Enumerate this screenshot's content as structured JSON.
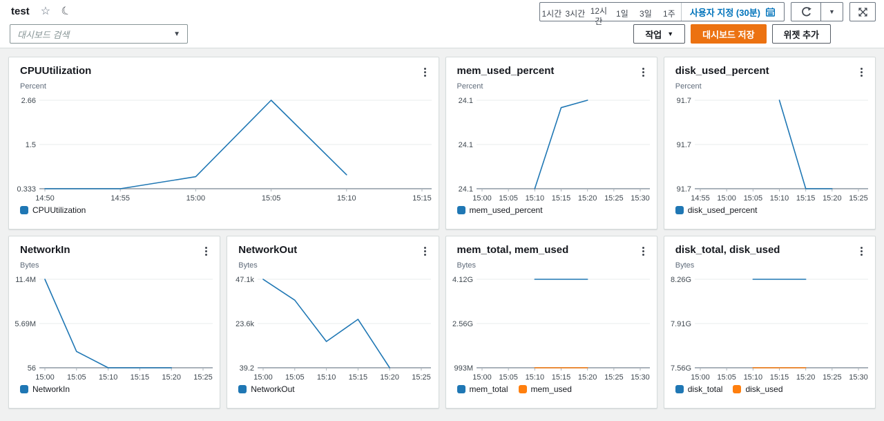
{
  "header": {
    "title": "test",
    "search_placeholder": "대시보드 검색",
    "time_ranges": [
      "1시간",
      "3시간",
      "12시간",
      "1일",
      "3일",
      "1주"
    ],
    "custom_range": "사용자 지정 (30분)",
    "actions": "작업",
    "save": "대시보드 저장",
    "add_widget": "위젯 추가"
  },
  "colors": {
    "accent_orange": "#ec7211",
    "link_blue": "#0073bb",
    "series_blue": "#1f77b4",
    "series_orange": "#ff7f0e"
  },
  "chart_data": [
    {
      "type": "line",
      "title": "CPUUtilization",
      "unit": "Percent",
      "span": 2,
      "x_ticks": [
        "14:50",
        "14:55",
        "15:00",
        "15:05",
        "15:10",
        "15:15"
      ],
      "y_ticks": [
        {
          "value": 2.66,
          "label": "2.66"
        },
        {
          "value": 1.5,
          "label": "1.5"
        },
        {
          "value": 0.333,
          "label": "0.333"
        }
      ],
      "series": [
        {
          "name": "CPUUtilization",
          "color": "#1f77b4",
          "points": [
            [
              "14:50",
              0.333
            ],
            [
              "14:55",
              0.333
            ],
            [
              "15:00",
              0.65
            ],
            [
              "15:05",
              2.66
            ],
            [
              "15:10",
              0.7
            ]
          ]
        }
      ]
    },
    {
      "type": "line",
      "title": "mem_used_percent",
      "unit": "Percent",
      "span": 1,
      "x_ticks": [
        "15:00",
        "15:05",
        "15:10",
        "15:15",
        "15:20",
        "15:25",
        "15:30"
      ],
      "y_ticks": [
        {
          "value": 24.13,
          "label": "24.1"
        },
        {
          "value": 24.1,
          "label": "24.1"
        },
        {
          "value": 24.07,
          "label": "24.1"
        }
      ],
      "series": [
        {
          "name": "mem_used_percent",
          "color": "#1f77b4",
          "points": [
            [
              "15:10",
              24.07
            ],
            [
              "15:15",
              24.125
            ],
            [
              "15:20",
              24.13
            ]
          ]
        }
      ]
    },
    {
      "type": "line",
      "title": "disk_used_percent",
      "unit": "Percent",
      "span": 1,
      "x_ticks": [
        "14:55",
        "15:00",
        "15:05",
        "15:10",
        "15:15",
        "15:20",
        "15:25"
      ],
      "y_ticks": [
        {
          "value": 91.75,
          "label": "91.7"
        },
        {
          "value": 91.7,
          "label": "91.7"
        },
        {
          "value": 91.65,
          "label": "91.7"
        }
      ],
      "series": [
        {
          "name": "disk_used_percent",
          "color": "#1f77b4",
          "points": [
            [
              "15:10",
              91.75
            ],
            [
              "15:15",
              91.65
            ],
            [
              "15:20",
              91.65
            ]
          ]
        }
      ]
    },
    {
      "type": "line",
      "title": "NetworkIn",
      "unit": "Bytes",
      "span": 1,
      "x_ticks": [
        "15:00",
        "15:05",
        "15:10",
        "15:15",
        "15:20",
        "15:25"
      ],
      "y_ticks": [
        {
          "value": 11400000,
          "label": "11.4M"
        },
        {
          "value": 5690000,
          "label": "5.69M"
        },
        {
          "value": 56,
          "label": "56"
        }
      ],
      "series": [
        {
          "name": "NetworkIn",
          "color": "#1f77b4",
          "points": [
            [
              "15:00",
              11400000
            ],
            [
              "15:05",
              2100000
            ],
            [
              "15:10",
              56
            ],
            [
              "15:15",
              56
            ],
            [
              "15:20",
              56
            ]
          ]
        }
      ]
    },
    {
      "type": "line",
      "title": "NetworkOut",
      "unit": "Bytes",
      "span": 1,
      "x_ticks": [
        "15:00",
        "15:05",
        "15:10",
        "15:15",
        "15:20",
        "15:25"
      ],
      "y_ticks": [
        {
          "value": 47100,
          "label": "47.1k"
        },
        {
          "value": 23600,
          "label": "23.6k"
        },
        {
          "value": 39.2,
          "label": "39.2"
        }
      ],
      "series": [
        {
          "name": "NetworkOut",
          "color": "#1f77b4",
          "points": [
            [
              "15:00",
              47100
            ],
            [
              "15:05",
              36000
            ],
            [
              "15:10",
              14000
            ],
            [
              "15:15",
              25800
            ],
            [
              "15:20",
              39.2
            ]
          ]
        }
      ]
    },
    {
      "type": "line",
      "title": "mem_total, mem_used",
      "unit": "Bytes",
      "span": 1,
      "x_ticks": [
        "15:00",
        "15:05",
        "15:10",
        "15:15",
        "15:20",
        "15:25",
        "15:30"
      ],
      "y_ticks": [
        {
          "value": 4120000000,
          "label": "4.12G"
        },
        {
          "value": 2560000000,
          "label": "2.56G"
        },
        {
          "value": 993000000,
          "label": "993M"
        }
      ],
      "series": [
        {
          "name": "mem_total",
          "color": "#1f77b4",
          "points": [
            [
              "15:10",
              4120000000
            ],
            [
              "15:20",
              4120000000
            ]
          ]
        },
        {
          "name": "mem_used",
          "color": "#ff7f0e",
          "points": [
            [
              "15:10",
              993000000
            ],
            [
              "15:20",
              993000000
            ]
          ]
        }
      ]
    },
    {
      "type": "line",
      "title": "disk_total, disk_used",
      "unit": "Bytes",
      "span": 1,
      "x_ticks": [
        "15:00",
        "15:05",
        "15:10",
        "15:15",
        "15:20",
        "15:25",
        "15:30"
      ],
      "y_ticks": [
        {
          "value": 8260000000,
          "label": "8.26G"
        },
        {
          "value": 7910000000,
          "label": "7.91G"
        },
        {
          "value": 7560000000,
          "label": "7.56G"
        }
      ],
      "series": [
        {
          "name": "disk_total",
          "color": "#1f77b4",
          "points": [
            [
              "15:10",
              8260000000
            ],
            [
              "15:20",
              8260000000
            ]
          ]
        },
        {
          "name": "disk_used",
          "color": "#ff7f0e",
          "points": [
            [
              "15:10",
              7560000000
            ],
            [
              "15:20",
              7560000000
            ]
          ]
        }
      ]
    }
  ]
}
